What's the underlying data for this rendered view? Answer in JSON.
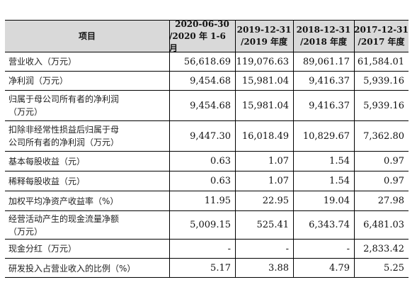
{
  "table": {
    "headers": [
      {
        "line1": "项目",
        "line2": ""
      },
      {
        "line1": "2020-06-30",
        "line2": "/2020 年 1-6 月"
      },
      {
        "line1": "2019-12-31",
        "line2": "/2019 年度"
      },
      {
        "line1": "2018-12-31",
        "line2": "/2018 年度"
      },
      {
        "line1": "2017-12-31",
        "line2": "/2017 年度"
      }
    ],
    "rows": [
      {
        "label": "营业收入（万元）",
        "values": [
          "56,618.69",
          "119,076.63",
          "89,061.17",
          "61,584.01"
        ]
      },
      {
        "label": "净利润（万元）",
        "values": [
          "9,454.68",
          "15,981.04",
          "9,416.37",
          "5,939.16"
        ]
      },
      {
        "label": "归属于母公司所有者的净利润\n（万元）",
        "values": [
          "9,454.68",
          "15,981.04",
          "9,416.37",
          "5,939.16"
        ]
      },
      {
        "label": "扣除非经常性损益后归属于母\n公司所有者的净利润（万元）",
        "values": [
          "9,447.30",
          "16,018.49",
          "10,829.67",
          "7,362.80"
        ]
      },
      {
        "label": "基本每股收益（元）",
        "values": [
          "0.63",
          "1.07",
          "1.54",
          "0.97"
        ]
      },
      {
        "label": "稀释每股收益（元）",
        "values": [
          "0.63",
          "1.07",
          "1.54",
          "0.97"
        ]
      },
      {
        "label": "加权平均净资产收益率（%）",
        "values": [
          "11.95",
          "22.95",
          "19.04",
          "27.98"
        ]
      },
      {
        "label": "经营活动产生的现金流量净额\n（万元）",
        "values": [
          "5,009.15",
          "525.41",
          "6,343.74",
          "6,481.03"
        ]
      },
      {
        "label": "现金分红（万元）",
        "values": [
          "-",
          "-",
          "-",
          "2,833.42"
        ]
      },
      {
        "label": "研发投入占营业收入的比例（%）",
        "values": [
          "5.17",
          "3.88",
          "4.79",
          "5.25"
        ]
      }
    ]
  }
}
